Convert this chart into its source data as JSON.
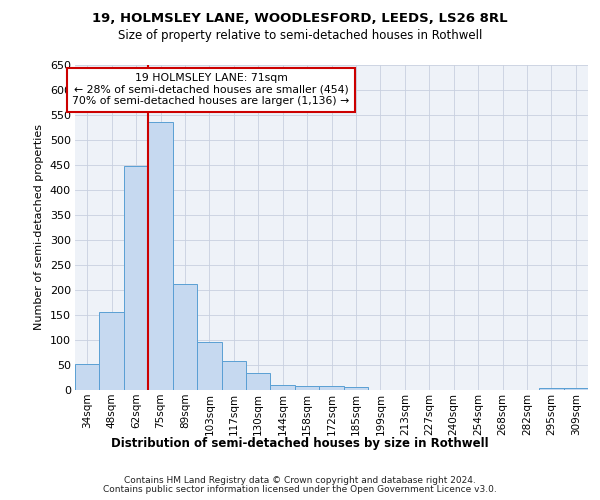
{
  "title1": "19, HOLMSLEY LANE, WOODLESFORD, LEEDS, LS26 8RL",
  "title2": "Size of property relative to semi-detached houses in Rothwell",
  "xlabel": "Distribution of semi-detached houses by size in Rothwell",
  "ylabel": "Number of semi-detached properties",
  "footnote1": "Contains HM Land Registry data © Crown copyright and database right 2024.",
  "footnote2": "Contains public sector information licensed under the Open Government Licence v3.0.",
  "categories": [
    "34sqm",
    "48sqm",
    "62sqm",
    "75sqm",
    "89sqm",
    "103sqm",
    "117sqm",
    "130sqm",
    "144sqm",
    "158sqm",
    "172sqm",
    "185sqm",
    "199sqm",
    "213sqm",
    "227sqm",
    "240sqm",
    "254sqm",
    "268sqm",
    "282sqm",
    "295sqm",
    "309sqm"
  ],
  "values": [
    52,
    157,
    449,
    537,
    213,
    97,
    58,
    34,
    11,
    9,
    8,
    6,
    1,
    1,
    1,
    1,
    0,
    0,
    0,
    5,
    5
  ],
  "bar_color": "#c6d9f0",
  "bar_edge_color": "#5a9fd4",
  "grid_color": "#c8d0e0",
  "bg_color": "#eef2f8",
  "vline_color": "#cc0000",
  "vline_x": 2.5,
  "annotation_line1": "19 HOLMSLEY LANE: 71sqm",
  "annotation_line2": "← 28% of semi-detached houses are smaller (454)",
  "annotation_line3": "70% of semi-detached houses are larger (1,136) →",
  "annotation_box_facecolor": "white",
  "annotation_box_edgecolor": "#cc0000",
  "ylim_max": 650,
  "ytick_step": 50
}
